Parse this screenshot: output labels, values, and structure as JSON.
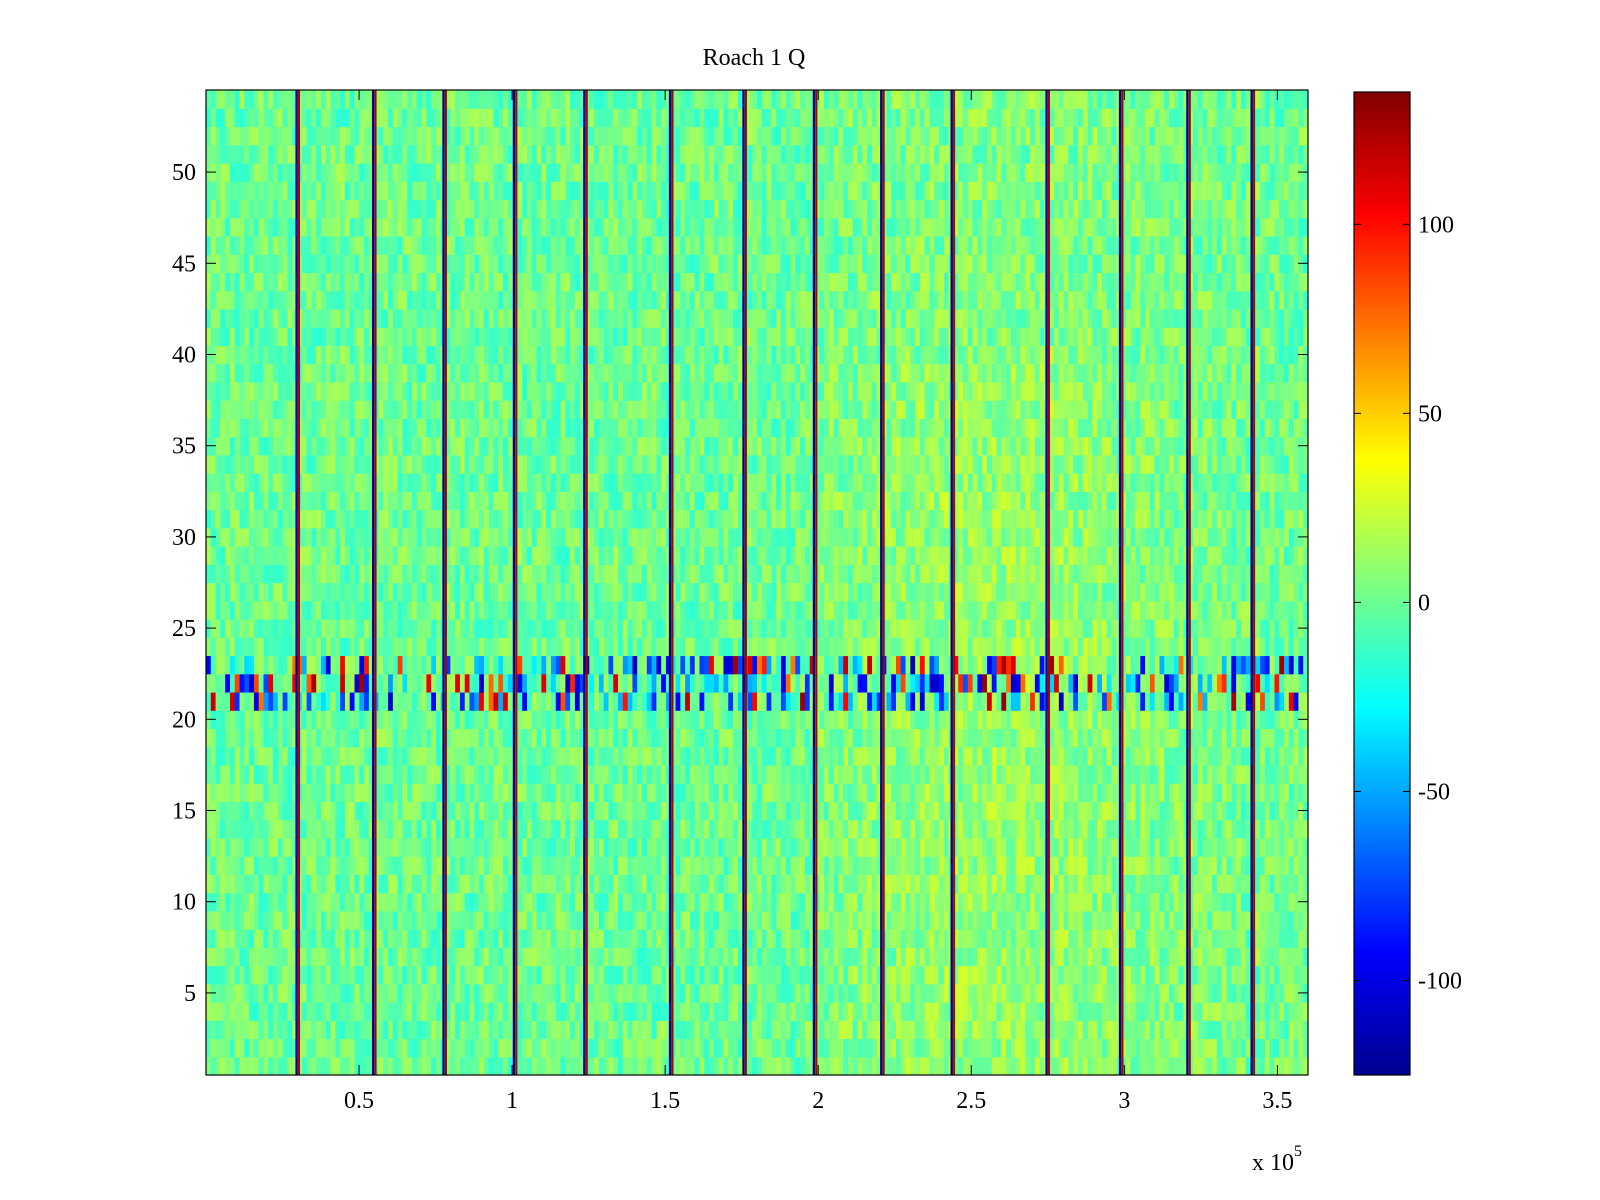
{
  "chart_data": {
    "type": "heatmap",
    "title": "Roach 1 Q",
    "xlabel": "",
    "ylabel": "",
    "x_exponent_label": "x 10",
    "x_exponent": "5",
    "xlim": [
      0,
      3.6
    ],
    "ylim": [
      0.5,
      54.5
    ],
    "x_ticks": [
      0.5,
      1,
      1.5,
      2,
      2.5,
      3,
      3.5
    ],
    "x_tick_labels": [
      "0.5",
      "1",
      "1.5",
      "2",
      "2.5",
      "3",
      "3.5"
    ],
    "y_ticks": [
      5,
      10,
      15,
      20,
      25,
      30,
      35,
      40,
      45,
      50
    ],
    "y_tick_labels": [
      "5",
      "10",
      "15",
      "20",
      "25",
      "30",
      "35",
      "40",
      "45",
      "50"
    ],
    "rows": 54,
    "colorbar": {
      "colormap": "jet",
      "clim": [
        -125,
        135
      ],
      "ticks": [
        -100,
        -50,
        0,
        50,
        100
      ],
      "tick_labels": [
        "-100",
        "-50",
        "0",
        "50",
        "100"
      ]
    },
    "grid": false,
    "typical_value": 0,
    "high_variance_rows": [
      21,
      22,
      23
    ],
    "warmer_region_x": [
      2.0,
      3.6
    ],
    "vertical_stripe_x": [
      0.3,
      0.55,
      0.78,
      1.01,
      1.24,
      1.52,
      1.76,
      1.99,
      2.21,
      2.44,
      2.75,
      2.99,
      3.21,
      3.42
    ]
  }
}
